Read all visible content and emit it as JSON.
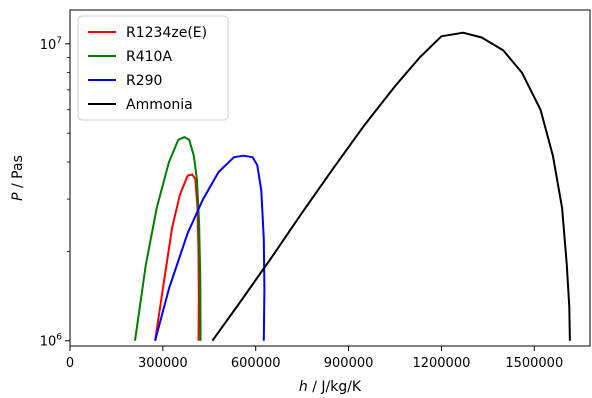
{
  "chart_data": {
    "type": "line",
    "title": "",
    "xlabel": "h / J/kg/K",
    "ylabel": "P / Pas",
    "xlim": [
      0,
      1680000
    ],
    "ylim": [
      960000,
      13000000
    ],
    "yscale": "log",
    "grid": false,
    "legend_position": "top-left",
    "x_ticks": [
      0,
      300000,
      600000,
      900000,
      1200000,
      1500000
    ],
    "x_tick_labels": [
      "0",
      "300000",
      "600000",
      "900000",
      "1200000",
      "1500000"
    ],
    "y_ticks": [
      1000000,
      10000000
    ],
    "y_tick_labels": [
      "10^6",
      "10^7"
    ],
    "series": [
      {
        "name": "R1234ze(E)",
        "color": "#ff0000",
        "points": [
          [
            275000,
            1000000
          ],
          [
            300000,
            1500000
          ],
          [
            330000,
            2400000
          ],
          [
            355000,
            3100000
          ],
          [
            380000,
            3600000
          ],
          [
            395000,
            3630000
          ],
          [
            405000,
            3500000
          ],
          [
            412000,
            2800000
          ],
          [
            415000,
            2000000
          ],
          [
            416000,
            1400000
          ],
          [
            415000,
            1000000
          ]
        ]
      },
      {
        "name": "R410A",
        "color": "#008000",
        "points": [
          [
            210000,
            1000000
          ],
          [
            245000,
            1800000
          ],
          [
            280000,
            2800000
          ],
          [
            320000,
            4000000
          ],
          [
            350000,
            4750000
          ],
          [
            370000,
            4850000
          ],
          [
            385000,
            4750000
          ],
          [
            400000,
            4200000
          ],
          [
            410000,
            3500000
          ],
          [
            417000,
            2500000
          ],
          [
            421000,
            1600000
          ],
          [
            422000,
            1000000
          ]
        ]
      },
      {
        "name": "R290",
        "color": "#0000ff",
        "points": [
          [
            275000,
            1000000
          ],
          [
            320000,
            1500000
          ],
          [
            380000,
            2300000
          ],
          [
            430000,
            3000000
          ],
          [
            480000,
            3700000
          ],
          [
            530000,
            4150000
          ],
          [
            560000,
            4200000
          ],
          [
            590000,
            4150000
          ],
          [
            605000,
            3900000
          ],
          [
            618000,
            3200000
          ],
          [
            626000,
            2200000
          ],
          [
            628000,
            1500000
          ],
          [
            626000,
            1000000
          ]
        ]
      },
      {
        "name": "Ammonia",
        "color": "#000000",
        "points": [
          [
            460000,
            1000000
          ],
          [
            550000,
            1350000
          ],
          [
            650000,
            1900000
          ],
          [
            750000,
            2700000
          ],
          [
            850000,
            3800000
          ],
          [
            950000,
            5300000
          ],
          [
            1050000,
            7200000
          ],
          [
            1130000,
            9000000
          ],
          [
            1200000,
            10600000
          ],
          [
            1270000,
            10900000
          ],
          [
            1330000,
            10500000
          ],
          [
            1400000,
            9500000
          ],
          [
            1460000,
            8000000
          ],
          [
            1520000,
            6000000
          ],
          [
            1560000,
            4200000
          ],
          [
            1590000,
            2800000
          ],
          [
            1605000,
            1800000
          ],
          [
            1613000,
            1300000
          ],
          [
            1615000,
            1000000
          ]
        ]
      }
    ]
  }
}
